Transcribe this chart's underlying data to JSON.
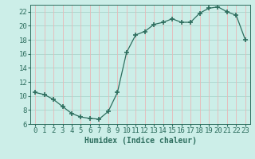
{
  "x": [
    0,
    1,
    2,
    3,
    4,
    5,
    6,
    7,
    8,
    9,
    10,
    11,
    12,
    13,
    14,
    15,
    16,
    17,
    18,
    19,
    20,
    21,
    22,
    23
  ],
  "y": [
    10.5,
    10.2,
    9.5,
    8.5,
    7.5,
    7.0,
    6.8,
    6.7,
    7.8,
    10.5,
    16.2,
    18.7,
    19.2,
    20.2,
    20.5,
    21.0,
    20.5,
    20.5,
    21.8,
    22.5,
    22.7,
    22.0,
    21.5,
    18.0
  ],
  "line_color": "#2d6e5e",
  "marker": "+",
  "markersize": 4,
  "markeredgewidth": 1.2,
  "bg_color": "#cceee8",
  "grid_color_h": "#aad4cc",
  "grid_color_v": "#e8b8b8",
  "xlabel": "Humidex (Indice chaleur)",
  "xlim": [
    -0.5,
    23.5
  ],
  "ylim": [
    6,
    23
  ],
  "yticks": [
    6,
    8,
    10,
    12,
    14,
    16,
    18,
    20,
    22
  ],
  "xticks": [
    0,
    1,
    2,
    3,
    4,
    5,
    6,
    7,
    8,
    9,
    10,
    11,
    12,
    13,
    14,
    15,
    16,
    17,
    18,
    19,
    20,
    21,
    22,
    23
  ],
  "xlabel_fontsize": 7,
  "tick_fontsize": 6.5
}
